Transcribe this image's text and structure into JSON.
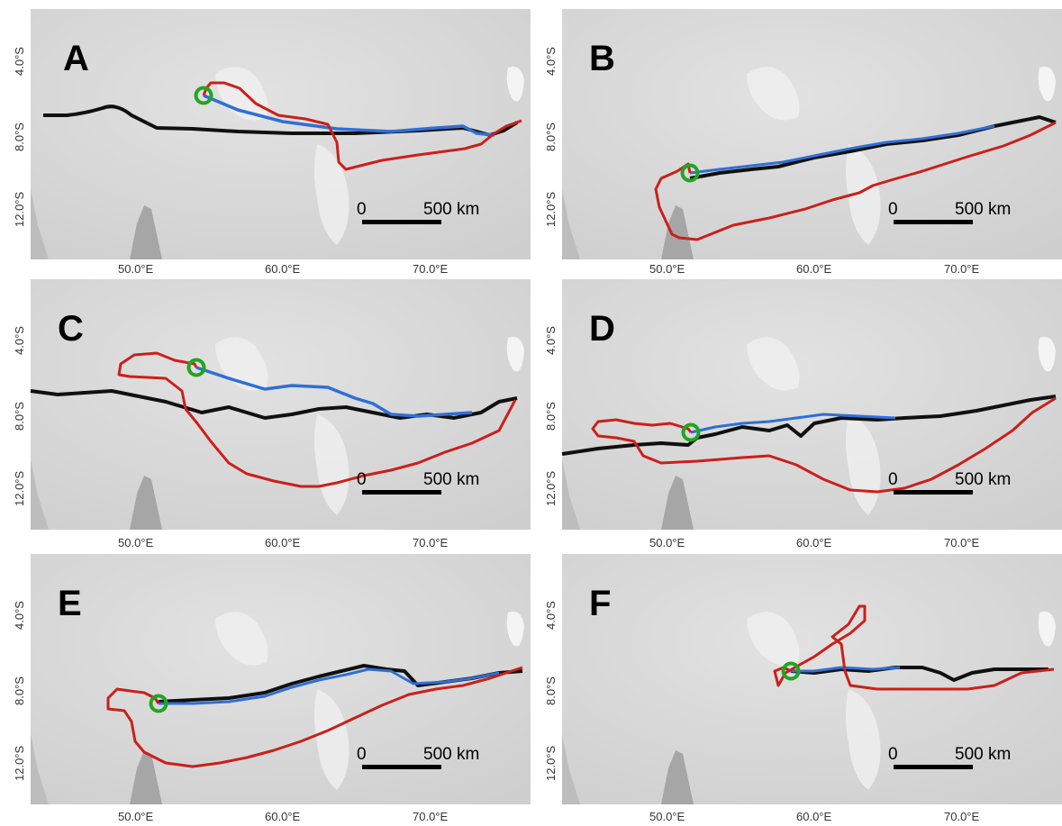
{
  "figure": {
    "x_tick_labels": [
      "50.0°E",
      "60.0°E",
      "70.0°E"
    ],
    "y_tick_labels": [
      "4.0°S",
      "8.0°S",
      "12.0°S"
    ],
    "scale_bar": {
      "zero_label": "0",
      "length_label": "500 km"
    },
    "colors": {
      "red_track": "#cc1f1a",
      "blue_track": "#2f6fd6",
      "black_track": "#101010",
      "start_marker": "#22a522",
      "sea": "#d6d6d6",
      "land": "#a6a6a6",
      "reef": "#f2f2f2"
    },
    "panels": [
      {
        "letter": "A"
      },
      {
        "letter": "B"
      },
      {
        "letter": "C"
      },
      {
        "letter": "D"
      },
      {
        "letter": "E"
      },
      {
        "letter": "F"
      }
    ]
  }
}
